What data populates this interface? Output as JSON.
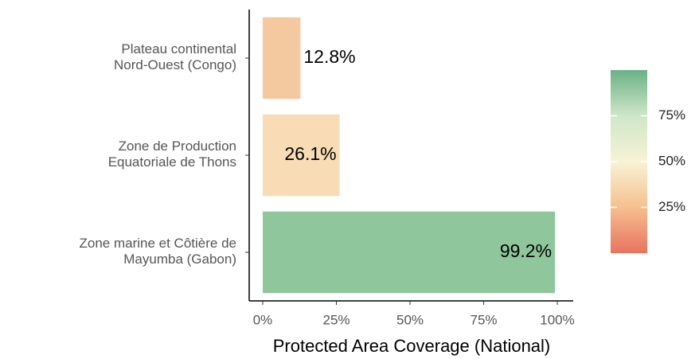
{
  "chart_data": {
    "type": "bar",
    "categories": [
      [
        "Plateau continental",
        "Nord-Ouest (Congo)"
      ],
      [
        "Zone de Production",
        "Equatoriale de Thons"
      ],
      [
        "Zone marine et Côtière de",
        "Mayumba (Gabon)"
      ]
    ],
    "values": [
      12.8,
      26.1,
      99.2
    ],
    "value_labels": [
      "12.8%",
      "26.1%",
      "99.2%"
    ],
    "colors": [
      "#f4c9a0",
      "#f8dcb5",
      "#8fc69c"
    ],
    "xlabel": "Protected Area Coverage (National)",
    "xlim": [
      -4.6,
      105.4
    ],
    "xticks": [
      {
        "value": 0,
        "label": "0%"
      },
      {
        "value": 25,
        "label": "25%"
      },
      {
        "value": 50,
        "label": "50%"
      },
      {
        "value": 75,
        "label": "75%"
      },
      {
        "value": 100,
        "label": "100%"
      }
    ],
    "legend": {
      "lim": [
        0,
        100
      ],
      "colorscale": [
        "#e8735f",
        "#f5c08f",
        "#f7f3d6",
        "#cfe6c8",
        "#6ab187"
      ],
      "ticks": [
        {
          "value": 25,
          "label": "25%"
        },
        {
          "value": 50,
          "label": "50%"
        },
        {
          "value": 75,
          "label": "75%"
        }
      ]
    }
  }
}
